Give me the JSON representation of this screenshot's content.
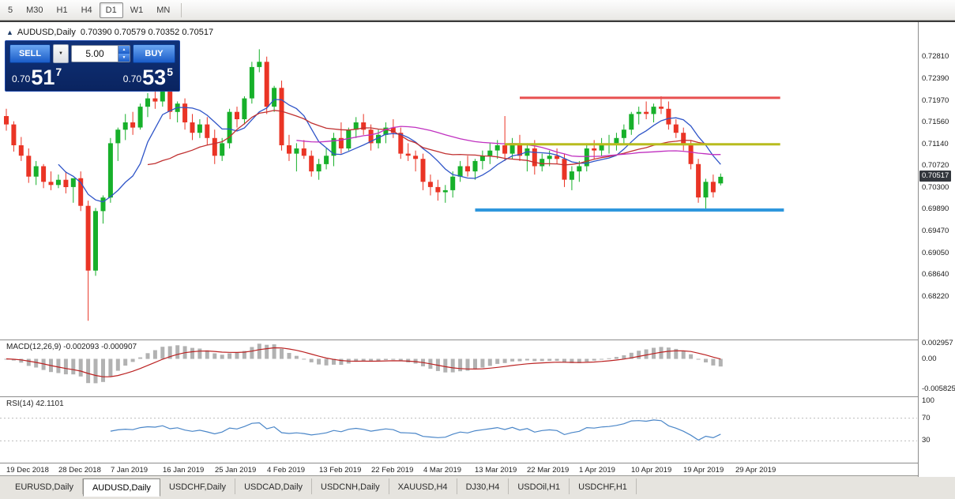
{
  "toolbar": {
    "timeframes": [
      "5",
      "M30",
      "H1",
      "H4",
      "D1",
      "W1",
      "MN"
    ],
    "active": "D1"
  },
  "chart": {
    "symbol_title": "AUDUSD,Daily",
    "ohlc_text": "0.70390 0.70579 0.70352 0.70517"
  },
  "trade_panel": {
    "sell_label": "SELL",
    "buy_label": "BUY",
    "volume": "5.00",
    "dropdown_icon": "▼",
    "spin_up_icon": "▲",
    "spin_down_icon": "▼",
    "sell_price": {
      "prefix": "0.70",
      "big": "51",
      "sup": "7"
    },
    "buy_price": {
      "prefix": "0.70",
      "big": "53",
      "sup": "5"
    }
  },
  "tabbar": {
    "tabs": [
      "EURUSD,Daily",
      "AUDUSD,Daily",
      "USDCHF,Daily",
      "USDCAD,Daily",
      "USDCNH,Daily",
      "XAUUSD,H4",
      "DJ30,H4",
      "USDOil,H1",
      "USDCHF,H1"
    ],
    "active_index": 1
  },
  "chart_data": {
    "type": "candlestick",
    "symbol": "AUDUSD",
    "timeframe": "Daily",
    "up_color": "#17b02a",
    "down_color": "#ea3425",
    "current_price_label": "0.70517",
    "price_range": {
      "max": 0.7342,
      "min": 0.6746
    },
    "price_axis_labels": [
      "0.72810",
      "0.72390",
      "0.71970",
      "0.71560",
      "0.71140",
      "0.70720",
      "0.70300",
      "0.69890",
      "0.69470",
      "0.69050",
      "0.68640",
      "0.68220"
    ],
    "date_labels": [
      "19 Dec 2018",
      "28 Dec 2018",
      "7 Jan 2019",
      "16 Jan 2019",
      "25 Jan 2019",
      "4 Feb 2019",
      "13 Feb 2019",
      "22 Feb 2019",
      "4 Mar 2019",
      "13 Mar 2019",
      "22 Mar 2019",
      "1 Apr 2019",
      "10 Apr 2019",
      "19 Apr 2019",
      "29 Apr 2019"
    ],
    "candles": [
      [
        0.7168,
        0.7182,
        0.714,
        0.7152
      ],
      [
        0.7152,
        0.7158,
        0.71,
        0.7112
      ],
      [
        0.7112,
        0.7128,
        0.7082,
        0.7092
      ],
      [
        0.7092,
        0.7106,
        0.704,
        0.7052
      ],
      [
        0.7052,
        0.7082,
        0.7036,
        0.7072
      ],
      [
        0.7072,
        0.7076,
        0.703,
        0.7042
      ],
      [
        0.7042,
        0.7062,
        0.7026,
        0.7036
      ],
      [
        0.7036,
        0.7056,
        0.703,
        0.7046
      ],
      [
        0.7046,
        0.7062,
        0.702,
        0.7032
      ],
      [
        0.7032,
        0.7046,
        0.7002,
        0.7049
      ],
      [
        0.7049,
        0.7062,
        0.6986,
        0.6996
      ],
      [
        0.6996,
        0.7006,
        0.6776,
        0.6872
      ],
      [
        0.6872,
        0.6992,
        0.6862,
        0.6986
      ],
      [
        0.6986,
        0.7016,
        0.6962,
        0.7012
      ],
      [
        0.7012,
        0.7126,
        0.7002,
        0.7116
      ],
      [
        0.7116,
        0.7146,
        0.7082,
        0.7142
      ],
      [
        0.7142,
        0.7172,
        0.7122,
        0.7156
      ],
      [
        0.7156,
        0.7176,
        0.7132,
        0.7146
      ],
      [
        0.7146,
        0.7192,
        0.7142,
        0.7186
      ],
      [
        0.7186,
        0.7212,
        0.7166,
        0.7202
      ],
      [
        0.7202,
        0.7216,
        0.7182,
        0.7196
      ],
      [
        0.7196,
        0.7236,
        0.7186,
        0.7222
      ],
      [
        0.7222,
        0.7226,
        0.7162,
        0.7176
      ],
      [
        0.7176,
        0.7196,
        0.7156,
        0.7192
      ],
      [
        0.7192,
        0.7202,
        0.7142,
        0.7156
      ],
      [
        0.7156,
        0.7172,
        0.7122,
        0.7136
      ],
      [
        0.7136,
        0.7162,
        0.7126,
        0.7152
      ],
      [
        0.7152,
        0.7166,
        0.7112,
        0.7126
      ],
      [
        0.7126,
        0.7142,
        0.7076,
        0.7092
      ],
      [
        0.7092,
        0.7126,
        0.7082,
        0.7116
      ],
      [
        0.7116,
        0.7182,
        0.7106,
        0.7176
      ],
      [
        0.7176,
        0.7186,
        0.7146,
        0.7162
      ],
      [
        0.7162,
        0.7206,
        0.7152,
        0.7202
      ],
      [
        0.7202,
        0.7272,
        0.7192,
        0.7262
      ],
      [
        0.7262,
        0.7296,
        0.7252,
        0.7272
      ],
      [
        0.7272,
        0.7282,
        0.7172,
        0.7186
      ],
      [
        0.7186,
        0.7226,
        0.7176,
        0.7222
      ],
      [
        0.7222,
        0.7236,
        0.7102,
        0.7112
      ],
      [
        0.7112,
        0.7132,
        0.7082,
        0.7096
      ],
      [
        0.7096,
        0.7116,
        0.7062,
        0.7106
      ],
      [
        0.7106,
        0.7122,
        0.7086,
        0.7092
      ],
      [
        0.7092,
        0.7102,
        0.7052,
        0.7062
      ],
      [
        0.7062,
        0.7086,
        0.7046,
        0.7076
      ],
      [
        0.7076,
        0.7106,
        0.7066,
        0.7092
      ],
      [
        0.7092,
        0.7136,
        0.7072,
        0.7126
      ],
      [
        0.7126,
        0.7156,
        0.7096,
        0.7106
      ],
      [
        0.7106,
        0.7146,
        0.7102,
        0.7142
      ],
      [
        0.7142,
        0.7166,
        0.7126,
        0.7156
      ],
      [
        0.7156,
        0.7172,
        0.7132,
        0.7142
      ],
      [
        0.7142,
        0.7152,
        0.7102,
        0.7116
      ],
      [
        0.7116,
        0.7142,
        0.7106,
        0.7132
      ],
      [
        0.7132,
        0.7156,
        0.7116,
        0.7146
      ],
      [
        0.7146,
        0.7162,
        0.7126,
        0.7136
      ],
      [
        0.7136,
        0.7146,
        0.7086,
        0.7096
      ],
      [
        0.7096,
        0.7116,
        0.7082,
        0.7092
      ],
      [
        0.7092,
        0.7102,
        0.7062,
        0.7086
      ],
      [
        0.7086,
        0.7096,
        0.7026,
        0.7042
      ],
      [
        0.7042,
        0.7056,
        0.7016,
        0.7032
      ],
      [
        0.7032,
        0.7046,
        0.7006,
        0.7022
      ],
      [
        0.7022,
        0.7036,
        0.7002,
        0.7026
      ],
      [
        0.7026,
        0.7062,
        0.7012,
        0.7052
      ],
      [
        0.7052,
        0.7082,
        0.7042,
        0.7072
      ],
      [
        0.7072,
        0.7092,
        0.7052,
        0.7062
      ],
      [
        0.7062,
        0.7086,
        0.7046,
        0.7082
      ],
      [
        0.7082,
        0.7102,
        0.7066,
        0.7092
      ],
      [
        0.7092,
        0.7116,
        0.7076,
        0.7102
      ],
      [
        0.7102,
        0.7122,
        0.7086,
        0.7112
      ],
      [
        0.7112,
        0.7168,
        0.7082,
        0.7096
      ],
      [
        0.7096,
        0.7126,
        0.7086,
        0.7116
      ],
      [
        0.7116,
        0.7132,
        0.7082,
        0.7092
      ],
      [
        0.7092,
        0.7116,
        0.7062,
        0.7106
      ],
      [
        0.7106,
        0.7122,
        0.7056,
        0.7072
      ],
      [
        0.7072,
        0.7096,
        0.7062,
        0.7086
      ],
      [
        0.7086,
        0.7102,
        0.7072,
        0.7092
      ],
      [
        0.7092,
        0.7106,
        0.7076,
        0.7086
      ],
      [
        0.7086,
        0.7096,
        0.7032,
        0.7046
      ],
      [
        0.7046,
        0.7072,
        0.7026,
        0.7062
      ],
      [
        0.7062,
        0.7082,
        0.7042,
        0.7072
      ],
      [
        0.7072,
        0.7116,
        0.7062,
        0.7106
      ],
      [
        0.7106,
        0.7122,
        0.7086,
        0.7102
      ],
      [
        0.7102,
        0.7126,
        0.7092,
        0.7112
      ],
      [
        0.7112,
        0.7132,
        0.7096,
        0.7116
      ],
      [
        0.7116,
        0.7136,
        0.7102,
        0.7126
      ],
      [
        0.7126,
        0.7152,
        0.7112,
        0.7142
      ],
      [
        0.7142,
        0.7176,
        0.7132,
        0.7172
      ],
      [
        0.7172,
        0.7186,
        0.7152,
        0.7176
      ],
      [
        0.7176,
        0.7196,
        0.7162,
        0.7172
      ],
      [
        0.7172,
        0.7192,
        0.7156,
        0.7186
      ],
      [
        0.7186,
        0.7206,
        0.7172,
        0.7182
      ],
      [
        0.7182,
        0.7196,
        0.7142,
        0.7152
      ],
      [
        0.7152,
        0.7162,
        0.7126,
        0.7136
      ],
      [
        0.7136,
        0.7146,
        0.7102,
        0.7112
      ],
      [
        0.7112,
        0.7122,
        0.7066,
        0.7076
      ],
      [
        0.7076,
        0.7086,
        0.7002,
        0.7012
      ],
      [
        0.7012,
        0.7048,
        0.6988,
        0.7042
      ],
      [
        0.7042,
        0.7056,
        0.7012,
        0.7022
      ],
      [
        0.7039,
        0.70579,
        0.70352,
        0.70517
      ]
    ],
    "moving_averages": [
      {
        "name": "ma-fast",
        "period": 8,
        "color": "#2f55c8"
      },
      {
        "name": "ma-medium",
        "period": 20,
        "color": "#c03030"
      },
      {
        "name": "ma-slow",
        "period": 40,
        "color": "#c030c0"
      }
    ],
    "trend_lines": [
      {
        "name": "resistance-line",
        "price": 0.7203,
        "from_bar": 69,
        "to_bar": 104,
        "color": "#e85050",
        "width": 3
      },
      {
        "name": "mid-line",
        "price": 0.7114,
        "from_bar": 67,
        "to_bar": 104,
        "color": "#b8bc1e",
        "width": 3
      },
      {
        "name": "support-line",
        "price": 0.6988,
        "from_bar": 63,
        "to_bar": 104.5,
        "color": "#2e97dd",
        "width": 4
      }
    ],
    "macd": {
      "label": "MACD(12,26,9) -0.002093 -0.000907",
      "fast": 12,
      "slow": 26,
      "signal": 9,
      "scale_labels": [
        "0.002957",
        "0.00",
        "-0.005825"
      ],
      "scale_max": 0.002957,
      "scale_min": -0.005825,
      "histogram_color": "#b2b2b2",
      "signal_color": "#bb2222"
    },
    "rsi": {
      "label": "RSI(14) 42.1101",
      "period": 14,
      "levels": [
        100,
        70,
        30
      ],
      "level_lines": [
        70,
        30
      ],
      "line_color": "#4a86c8"
    }
  }
}
